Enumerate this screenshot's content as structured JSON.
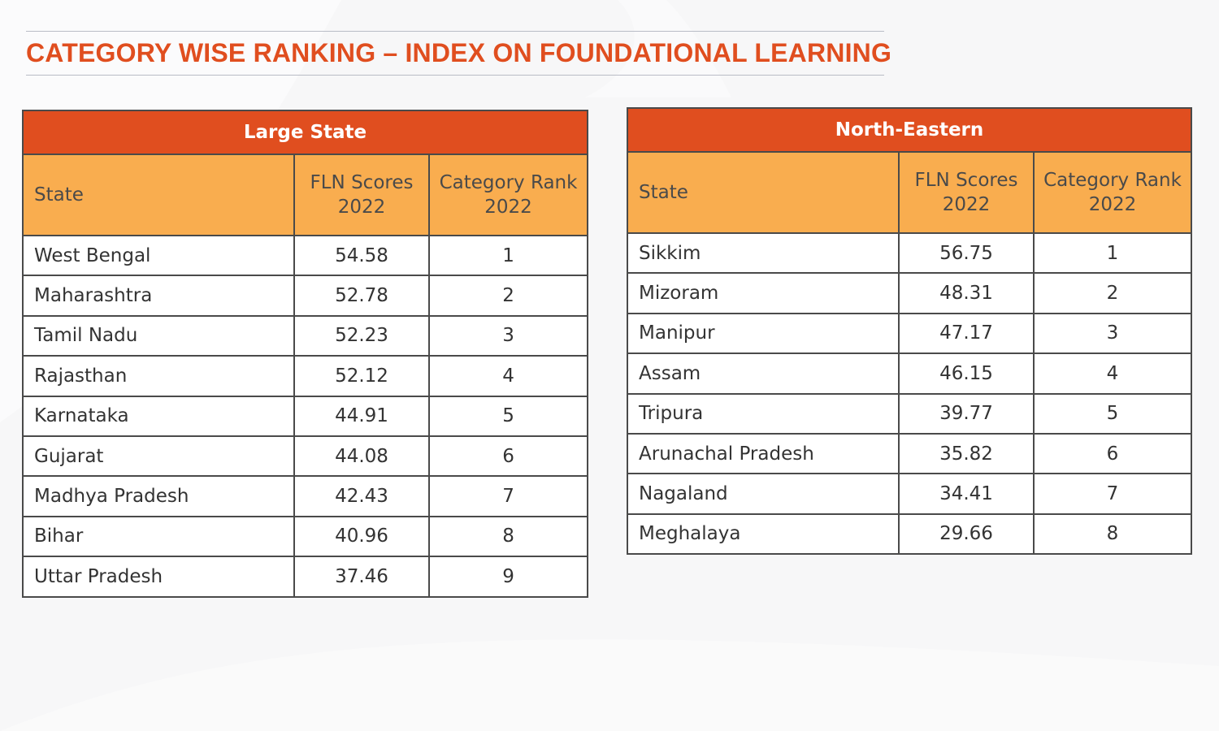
{
  "title": "CATEGORY WISE RANKING – INDEX ON FOUNDATIONAL LEARNING",
  "columns": {
    "state": "State",
    "score_line1": "FLN Scores",
    "score_line2": "2022",
    "rank_line1": "Category Rank",
    "rank_line2": "2022"
  },
  "tables": {
    "large": {
      "category": "Large State",
      "rows": [
        {
          "state": "West Bengal",
          "score": "54.58",
          "rank": "1"
        },
        {
          "state": "Maharashtra",
          "score": "52.78",
          "rank": "2"
        },
        {
          "state": "Tamil Nadu",
          "score": "52.23",
          "rank": "3"
        },
        {
          "state": "Rajasthan",
          "score": "52.12",
          "rank": "4"
        },
        {
          "state": "Karnataka",
          "score": "44.91",
          "rank": "5"
        },
        {
          "state": "Gujarat",
          "score": "44.08",
          "rank": "6"
        },
        {
          "state": "Madhya Pradesh",
          "score": "42.43",
          "rank": "7"
        },
        {
          "state": "Bihar",
          "score": "40.96",
          "rank": "8"
        },
        {
          "state": "Uttar Pradesh",
          "score": "37.46",
          "rank": "9"
        }
      ]
    },
    "north_eastern": {
      "category": "North-Eastern",
      "rows": [
        {
          "state": "Sikkim",
          "score": "56.75",
          "rank": "1"
        },
        {
          "state": "Mizoram",
          "score": "48.31",
          "rank": "2"
        },
        {
          "state": "Manipur",
          "score": "47.17",
          "rank": "3"
        },
        {
          "state": "Assam",
          "score": "46.15",
          "rank": "4"
        },
        {
          "state": "Tripura",
          "score": "39.77",
          "rank": "5"
        },
        {
          "state": "Arunachal Pradesh",
          "score": "35.82",
          "rank": "6"
        },
        {
          "state": "Nagaland",
          "score": "34.41",
          "rank": "7"
        },
        {
          "state": "Meghalaya",
          "score": "29.66",
          "rank": "8"
        }
      ]
    }
  },
  "colors": {
    "accent": "#e04e1f",
    "header_fill": "#f9ad4f",
    "border": "#4a4a4a"
  }
}
